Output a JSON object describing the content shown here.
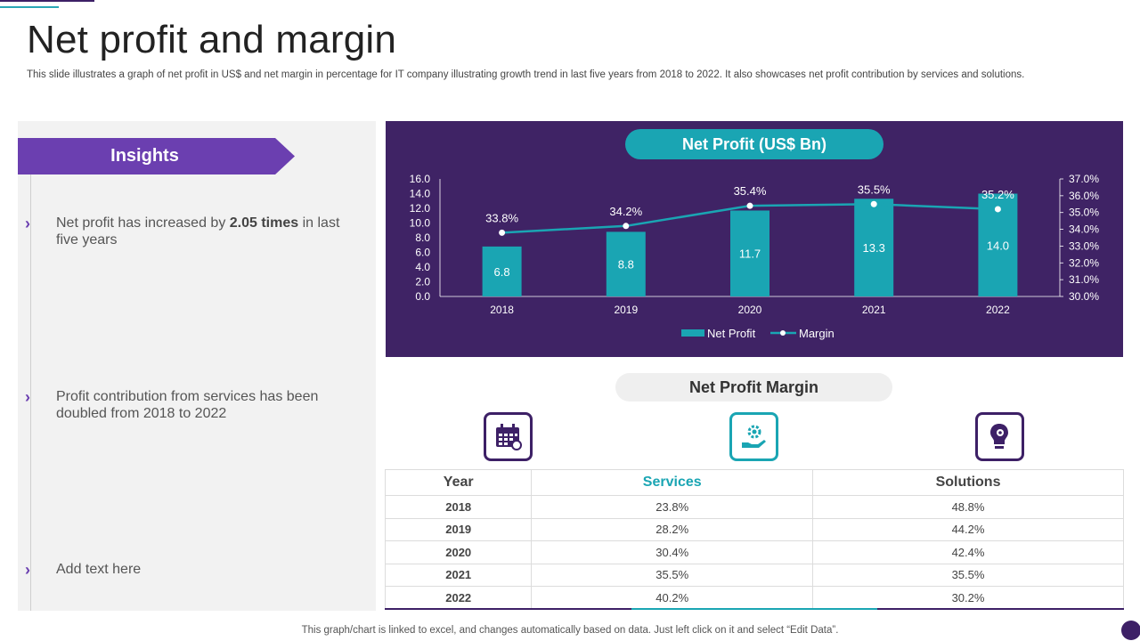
{
  "title": "Net profit and margin",
  "subtitle": "This slide illustrates a graph of net profit in US$ and net margin in percentage for IT  company illustrating growth trend in last five  years from 2018 to  2022. It also showcases net profit contribution by services and solutions.",
  "insights": {
    "heading": "Insights",
    "items": [
      {
        "pre": "Net profit has increased by ",
        "bold": "2.05 times",
        "post": " in last five years"
      },
      {
        "pre": "Profit contribution from services has been doubled from 2018 to 2022",
        "bold": "",
        "post": ""
      },
      {
        "pre": "Add text here",
        "bold": "",
        "post": ""
      }
    ]
  },
  "chart_title": "Net Profit (US$ Bn)",
  "chart_data": {
    "type": "bar",
    "categories": [
      "2018",
      "2019",
      "2020",
      "2021",
      "2022"
    ],
    "series": [
      {
        "name": "Net Profit",
        "type": "bar",
        "axis": "left",
        "values": [
          6.8,
          8.8,
          11.7,
          13.3,
          14.0
        ],
        "labels": [
          "6.8",
          "8.8",
          "11.7",
          "13.3",
          "14.0"
        ]
      },
      {
        "name": "Margin",
        "type": "line",
        "axis": "right",
        "values": [
          33.8,
          34.2,
          35.4,
          35.5,
          35.2
        ],
        "labels": [
          "33.8%",
          "34.2%",
          "35.4%",
          "35.5%",
          "35.2%"
        ]
      }
    ],
    "left_axis": {
      "range": [
        0,
        16
      ],
      "ticks": [
        "0.0",
        "2.0",
        "4.0",
        "6.0",
        "8.0",
        "10.0",
        "12.0",
        "14.0",
        "16.0"
      ]
    },
    "right_axis": {
      "range": [
        30,
        37
      ],
      "ticks": [
        "30.0%",
        "31.0%",
        "32.0%",
        "33.0%",
        "34.0%",
        "35.0%",
        "36.0%",
        "37.0%"
      ]
    },
    "legend": "bottom-center",
    "grid": false
  },
  "colors": {
    "purple": "#3f2365",
    "accent_purple": "#6b3fb0",
    "teal": "#1aa5b3"
  },
  "margin_table": {
    "title": "Net Profit Margin",
    "icons": [
      "calendar-icon",
      "gear-hand-icon",
      "bulb-gear-icon"
    ],
    "headers": [
      "Year",
      "Services",
      "Solutions"
    ],
    "rows": [
      [
        "2018",
        "23.8%",
        "48.8%"
      ],
      [
        "2019",
        "28.2%",
        "44.2%"
      ],
      [
        "2020",
        "30.4%",
        "42.4%"
      ],
      [
        "2021",
        "35.5%",
        "35.5%"
      ],
      [
        "2022",
        "40.2%",
        "30.2%"
      ]
    ]
  },
  "footer": "This graph/chart is linked to excel,  and changes automatically based on data. Just left click on it and select “Edit Data”."
}
